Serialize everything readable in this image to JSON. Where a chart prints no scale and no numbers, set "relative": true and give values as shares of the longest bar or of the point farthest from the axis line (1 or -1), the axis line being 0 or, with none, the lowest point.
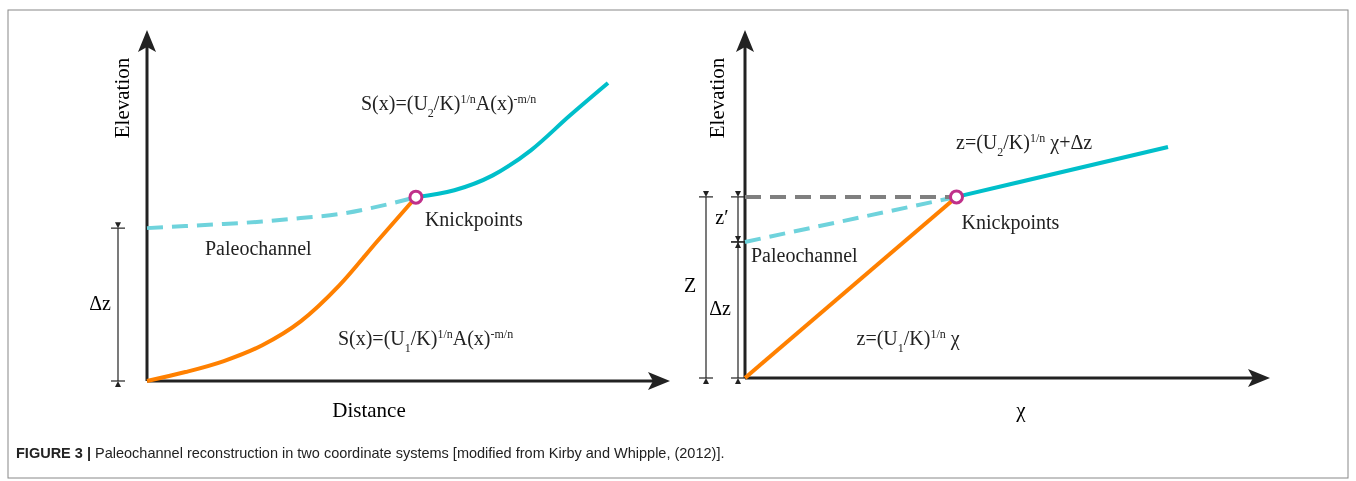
{
  "chart_data": [
    {
      "type": "line",
      "relative": true,
      "xlabel": "Distance",
      "ylabel": "Elevation",
      "categories": [
        null,
        null,
        null,
        null,
        null,
        null,
        null,
        null,
        null,
        null,
        null,
        null,
        null
      ],
      "series": [
        {
          "name": "Paleochannel",
          "color": "#6fd3dc",
          "line_style": "dashed",
          "values": [
            0.513,
            0.52,
            0.527,
            0.535,
            0.547,
            0.56,
            0.585,
            0.617,
            null,
            null,
            null,
            null,
            null
          ]
        },
        {
          "name": "S(x)=(U$_{1}$/K)$^{1/n}$A(x)$^{-m/n}$",
          "color": "#ff8000",
          "line_style": "solid",
          "values": [
            0,
            0.03,
            0.067,
            0.12,
            0.2,
            0.32,
            0.47,
            0.617,
            null,
            null,
            null,
            null,
            null
          ]
        },
        {
          "name": "S(x)=(U$_{2}$/K)$^{1/n}$A(x)$^{-m/n}$",
          "color": "#00bfca",
          "line_style": "solid",
          "values": [
            null,
            null,
            null,
            null,
            null,
            null,
            null,
            0.617,
            0.64,
            0.69,
            0.775,
            0.89,
            1
          ]
        }
      ],
      "annotations": [
        "Δz",
        "Knickpoints",
        "FIGURE 3 | Paleochannel reconstruction in two coordinate systems [modified from Kirby and Whipple, (2012)]."
      ]
    },
    {
      "type": "line",
      "relative": true,
      "xlabel": "χ",
      "ylabel": "Elevation",
      "categories": [
        null,
        null,
        null
      ],
      "series": [
        {
          "name": "Paleochannel",
          "color": "#6fd3dc",
          "line_style": "dashed",
          "values": [
            0.589,
            0.784,
            null
          ]
        },
        {
          "color": "#7f7f7f",
          "line_style": "dashed",
          "values": [
            0.784,
            0.784,
            null
          ]
        },
        {
          "name": "z=(U$_{1}$/K)$^{1/n}$ χ",
          "color": "#ff8000",
          "line_style": "solid",
          "values": [
            0,
            0.784,
            null
          ]
        },
        {
          "name": "z=(U$_{2}$/K)$^{1/n}$ χ+Δz",
          "color": "#00bfca",
          "line_style": "solid",
          "values": [
            null,
            0.784,
            1
          ]
        }
      ],
      "annotations": [
        "z′",
        "Δz",
        "Z",
        "Knickpoints"
      ]
    }
  ]
}
